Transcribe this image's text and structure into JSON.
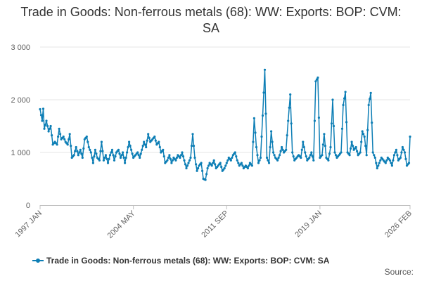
{
  "chart_data": {
    "type": "line",
    "title": "Trade in Goods: Non-ferrous metals (68): WW: Exports: BOP: CVM: SA",
    "xlabel": "",
    "ylabel": "",
    "ylim": [
      0,
      3000
    ],
    "y_ticks": [
      {
        "value": 0,
        "label": "0"
      },
      {
        "value": 1000,
        "label": "1 000"
      },
      {
        "value": 2000,
        "label": "2 000"
      },
      {
        "value": 3000,
        "label": "3 000"
      }
    ],
    "x_ticks": [
      {
        "index": 0,
        "label": "1997 JAN"
      },
      {
        "index": 88,
        "label": "2004 MAY"
      },
      {
        "index": 176,
        "label": "2011 SEP"
      },
      {
        "index": 264,
        "label": "2019 JAN"
      },
      {
        "index": 349,
        "label": "2026 FEB"
      }
    ],
    "legend_position": "bottom",
    "grid": true,
    "series": [
      {
        "name": "Trade in Goods: Non-ferrous metals (68): WW: Exports: BOP: CVM: SA",
        "color": "#0d7eb5",
        "anchors": [
          [
            0,
            1820
          ],
          [
            2,
            1600
          ],
          [
            3,
            1830
          ],
          [
            4,
            1450
          ],
          [
            6,
            1600
          ],
          [
            8,
            1400
          ],
          [
            10,
            1500
          ],
          [
            12,
            1150
          ],
          [
            14,
            1200
          ],
          [
            16,
            1150
          ],
          [
            18,
            1450
          ],
          [
            20,
            1250
          ],
          [
            22,
            1300
          ],
          [
            24,
            1200
          ],
          [
            26,
            1150
          ],
          [
            28,
            1350
          ],
          [
            30,
            900
          ],
          [
            32,
            950
          ],
          [
            34,
            1100
          ],
          [
            36,
            950
          ],
          [
            38,
            1050
          ],
          [
            40,
            900
          ],
          [
            42,
            1250
          ],
          [
            44,
            1300
          ],
          [
            46,
            1100
          ],
          [
            48,
            1000
          ],
          [
            50,
            800
          ],
          [
            52,
            1050
          ],
          [
            54,
            900
          ],
          [
            56,
            850
          ],
          [
            58,
            1200
          ],
          [
            60,
            850
          ],
          [
            62,
            950
          ],
          [
            64,
            800
          ],
          [
            66,
            950
          ],
          [
            68,
            1050
          ],
          [
            70,
            850
          ],
          [
            72,
            1000
          ],
          [
            74,
            1050
          ],
          [
            76,
            900
          ],
          [
            78,
            1000
          ],
          [
            80,
            800
          ],
          [
            82,
            1000
          ],
          [
            84,
            1200
          ],
          [
            86,
            1050
          ],
          [
            88,
            900
          ],
          [
            90,
            950
          ],
          [
            92,
            1000
          ],
          [
            94,
            900
          ],
          [
            96,
            1050
          ],
          [
            98,
            1200
          ],
          [
            100,
            1100
          ],
          [
            102,
            1350
          ],
          [
            104,
            1200
          ],
          [
            106,
            1250
          ],
          [
            108,
            1300
          ],
          [
            110,
            1150
          ],
          [
            112,
            1200
          ],
          [
            114,
            1000
          ],
          [
            116,
            1050
          ],
          [
            118,
            800
          ],
          [
            120,
            850
          ],
          [
            122,
            950
          ],
          [
            124,
            800
          ],
          [
            126,
            900
          ],
          [
            128,
            850
          ],
          [
            130,
            950
          ],
          [
            132,
            900
          ],
          [
            134,
            1000
          ],
          [
            136,
            850
          ],
          [
            138,
            700
          ],
          [
            140,
            800
          ],
          [
            142,
            900
          ],
          [
            144,
            1350
          ],
          [
            146,
            900
          ],
          [
            148,
            650
          ],
          [
            150,
            750
          ],
          [
            152,
            800
          ],
          [
            154,
            500
          ],
          [
            156,
            480
          ],
          [
            158,
            700
          ],
          [
            160,
            800
          ],
          [
            162,
            750
          ],
          [
            164,
            850
          ],
          [
            166,
            700
          ],
          [
            168,
            750
          ],
          [
            170,
            800
          ],
          [
            172,
            650
          ],
          [
            174,
            700
          ],
          [
            176,
            800
          ],
          [
            178,
            900
          ],
          [
            180,
            850
          ],
          [
            182,
            950
          ],
          [
            184,
            1000
          ],
          [
            186,
            850
          ],
          [
            188,
            750
          ],
          [
            190,
            800
          ],
          [
            192,
            700
          ],
          [
            194,
            750
          ],
          [
            196,
            700
          ],
          [
            198,
            800
          ],
          [
            200,
            750
          ],
          [
            202,
            1650
          ],
          [
            204,
            1100
          ],
          [
            206,
            800
          ],
          [
            208,
            900
          ],
          [
            210,
            1700
          ],
          [
            212,
            2570
          ],
          [
            214,
            900
          ],
          [
            216,
            800
          ],
          [
            218,
            1400
          ],
          [
            220,
            1000
          ],
          [
            222,
            900
          ],
          [
            224,
            850
          ],
          [
            226,
            950
          ],
          [
            228,
            1100
          ],
          [
            230,
            1000
          ],
          [
            232,
            1050
          ],
          [
            234,
            1600
          ],
          [
            236,
            2100
          ],
          [
            238,
            1000
          ],
          [
            240,
            850
          ],
          [
            242,
            900
          ],
          [
            244,
            950
          ],
          [
            246,
            900
          ],
          [
            248,
            1200
          ],
          [
            250,
            1000
          ],
          [
            252,
            850
          ],
          [
            254,
            900
          ],
          [
            256,
            1000
          ],
          [
            258,
            850
          ],
          [
            260,
            2350
          ],
          [
            262,
            2420
          ],
          [
            264,
            900
          ],
          [
            266,
            950
          ],
          [
            268,
            1350
          ],
          [
            270,
            900
          ],
          [
            272,
            850
          ],
          [
            274,
            1100
          ],
          [
            276,
            2000
          ],
          [
            278,
            1000
          ],
          [
            280,
            900
          ],
          [
            282,
            950
          ],
          [
            284,
            1000
          ],
          [
            286,
            1900
          ],
          [
            288,
            2150
          ],
          [
            290,
            1000
          ],
          [
            292,
            950
          ],
          [
            294,
            1200
          ],
          [
            296,
            1050
          ],
          [
            298,
            1100
          ],
          [
            300,
            950
          ],
          [
            302,
            1000
          ],
          [
            304,
            1400
          ],
          [
            306,
            1300
          ],
          [
            308,
            950
          ],
          [
            310,
            1900
          ],
          [
            312,
            2130
          ],
          [
            314,
            1000
          ],
          [
            316,
            900
          ],
          [
            318,
            700
          ],
          [
            320,
            800
          ],
          [
            322,
            900
          ],
          [
            324,
            850
          ],
          [
            326,
            800
          ],
          [
            328,
            900
          ],
          [
            330,
            850
          ],
          [
            332,
            750
          ],
          [
            334,
            950
          ],
          [
            336,
            1050
          ],
          [
            338,
            850
          ],
          [
            340,
            900
          ],
          [
            342,
            1100
          ],
          [
            344,
            1000
          ],
          [
            346,
            750
          ],
          [
            348,
            800
          ],
          [
            349,
            1300
          ]
        ]
      }
    ]
  },
  "legend": {
    "label": "Trade in Goods: Non-ferrous metals (68): WW: Exports: BOP: CVM: SA"
  },
  "source_label": "Source:",
  "colors": {
    "series": "#0d7eb5",
    "grid": "#e6e6e6",
    "text": "#333333"
  }
}
